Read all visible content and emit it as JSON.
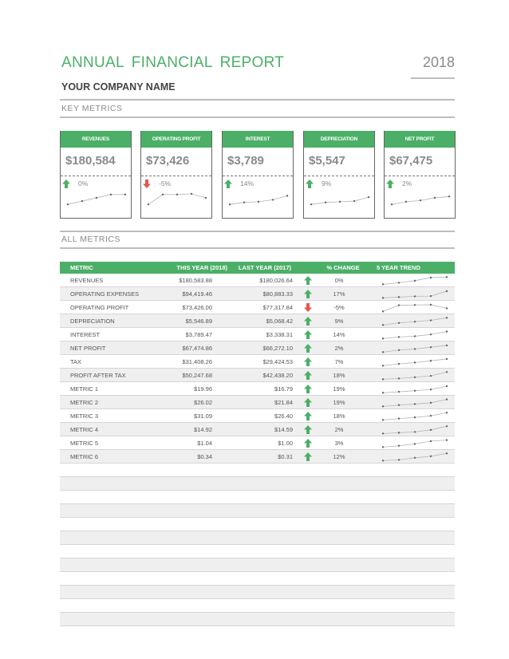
{
  "header": {
    "title": "ANNUAL FINANCIAL REPORT",
    "year": "2018",
    "company": "YOUR COMPANY NAME"
  },
  "sections": {
    "key_metrics": "KEY METRICS",
    "all_metrics": "ALL METRICS"
  },
  "colors": {
    "accent": "#4caf68",
    "down": "#e05a4f",
    "text": "#444444",
    "muted": "#8a8a8a"
  },
  "cards": [
    {
      "label": "REVENUES",
      "value": "$180,584",
      "change": "0%",
      "direction": "up",
      "trend": [
        1,
        2,
        3,
        4,
        4
      ]
    },
    {
      "label": "OPERATING PROFIT",
      "value": "$73,426",
      "change": "-5%",
      "direction": "down",
      "trend": [
        1,
        4,
        4,
        4.2,
        3
      ]
    },
    {
      "label": "INTEREST",
      "value": "$3,789",
      "change": "14%",
      "direction": "up",
      "trend": [
        1,
        1.6,
        1.8,
        2.4,
        3.6
      ]
    },
    {
      "label": "DEPRECIATION",
      "value": "$5,547",
      "change": "9%",
      "direction": "up",
      "trend": [
        1,
        1.6,
        1.8,
        2.0,
        3.2
      ]
    },
    {
      "label": "NET PROFIT",
      "value": "$67,475",
      "change": "2%",
      "direction": "up",
      "trend": [
        1,
        1.8,
        2.2,
        3.0,
        3.4
      ]
    }
  ],
  "table": {
    "headers": {
      "metric": "METRIC",
      "this_year": "THIS YEAR (2018)",
      "last_year": "LAST YEAR (2017)",
      "change": "% CHANGE",
      "trend": "5 YEAR TREND"
    },
    "rows": [
      {
        "metric": "REVENUES",
        "this_year": "$180,583.88",
        "last_year": "$180,026.64",
        "direction": "up",
        "change": "0%",
        "trend": [
          1,
          1.6,
          2.4,
          3.6,
          3.8
        ]
      },
      {
        "metric": "OPERATING EXPENSES",
        "this_year": "$94,419.46",
        "last_year": "$80,883.33",
        "direction": "up",
        "change": "17%",
        "trend": [
          1,
          1.3,
          1.6,
          1.7,
          3.6
        ]
      },
      {
        "metric": "OPERATING PROFIT",
        "this_year": "$73,426.00",
        "last_year": "$77,317.84",
        "direction": "down",
        "change": "-5%",
        "trend": [
          1,
          3.4,
          3.5,
          3.6,
          2.2
        ]
      },
      {
        "metric": "DEPRECIATION",
        "this_year": "$5,546.89",
        "last_year": "$5,068.42",
        "direction": "up",
        "change": "9%",
        "trend": [
          1,
          1.8,
          2.3,
          2.8,
          3.8
        ]
      },
      {
        "metric": "INTEREST",
        "this_year": "$3,789.47",
        "last_year": "$3,338.31",
        "direction": "up",
        "change": "14%",
        "trend": [
          1,
          1.6,
          1.9,
          2.6,
          3.7
        ]
      },
      {
        "metric": "NET PROFIT",
        "this_year": "$67,474.86",
        "last_year": "$66,272.10",
        "direction": "up",
        "change": "2%",
        "trend": [
          1,
          1.8,
          2.2,
          2.9,
          3.6
        ]
      },
      {
        "metric": "TAX",
        "this_year": "$31,408.26",
        "last_year": "$29,424.53",
        "direction": "up",
        "change": "7%",
        "trend": [
          1,
          1.7,
          2.2,
          2.9,
          3.6
        ]
      },
      {
        "metric": "PROFIT AFTER TAX",
        "this_year": "$50,247.68",
        "last_year": "$42,438.20",
        "direction": "up",
        "change": "18%",
        "trend": [
          1,
          1.3,
          1.8,
          2.3,
          3.8
        ]
      },
      {
        "metric": "METRIC 1",
        "this_year": "$19.96",
        "last_year": "$16.79",
        "direction": "up",
        "change": "19%",
        "trend": [
          1,
          1.4,
          1.8,
          2.3,
          3.6
        ]
      },
      {
        "metric": "METRIC 2",
        "this_year": "$26.02",
        "last_year": "$21.84",
        "direction": "up",
        "change": "19%",
        "trend": [
          1,
          1.5,
          1.9,
          2.4,
          3.7
        ]
      },
      {
        "metric": "METRIC 3",
        "this_year": "$31.09",
        "last_year": "$26.40",
        "direction": "up",
        "change": "18%",
        "trend": [
          1,
          1.5,
          2.0,
          2.6,
          3.8
        ]
      },
      {
        "metric": "METRIC 4",
        "this_year": "$14.92",
        "last_year": "$14.59",
        "direction": "up",
        "change": "2%",
        "trend": [
          1,
          1.3,
          1.6,
          2.4,
          3.8
        ]
      },
      {
        "metric": "METRIC 5",
        "this_year": "$1.04",
        "last_year": "$1.00",
        "direction": "up",
        "change": "3%",
        "trend": [
          1,
          1.5,
          2.2,
          3.3,
          3.7
        ]
      },
      {
        "metric": "METRIC 6",
        "this_year": "$0.34",
        "last_year": "$0.31",
        "direction": "up",
        "change": "12%",
        "trend": [
          1,
          1.3,
          2.1,
          2.7,
          3.8
        ]
      }
    ]
  }
}
